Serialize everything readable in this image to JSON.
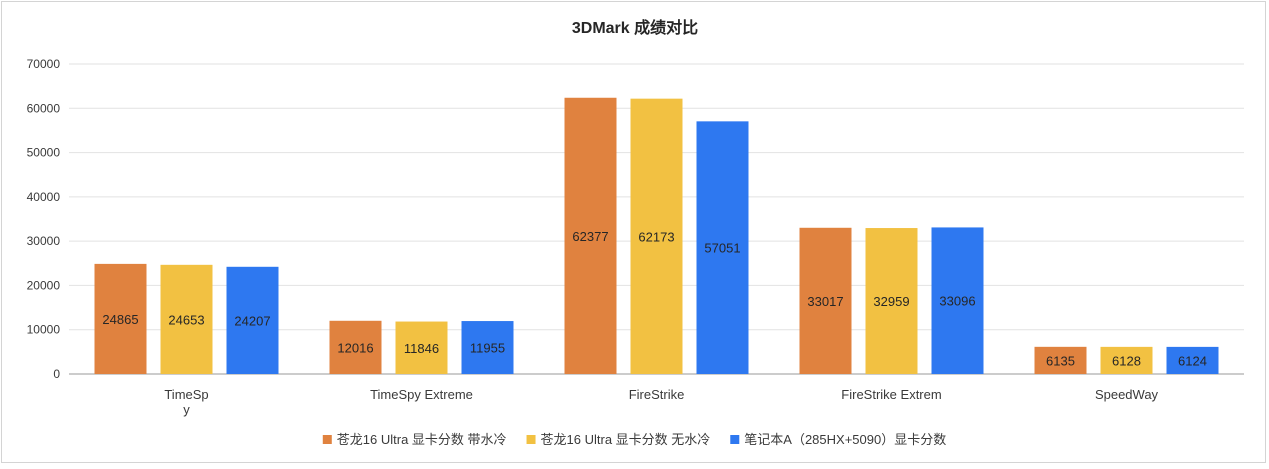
{
  "chart_data": {
    "type": "bar",
    "title": "3DMark 成绩对比",
    "categories": [
      "TimeSpy",
      "TimeSpy Extreme",
      "FireStrike",
      "FireStrike Extrem",
      "SpeedWay"
    ],
    "category_label_lines": [
      [
        "TimeSp",
        "y"
      ],
      [
        "TimeSpy Extreme"
      ],
      [
        "FireStrike"
      ],
      [
        "FireStrike Extrem"
      ],
      [
        "SpeedWay"
      ]
    ],
    "series": [
      {
        "name": "苍龙16 Ultra 显卡分数 带水冷",
        "color": "#e0823f",
        "values": [
          24865,
          12016,
          62377,
          33017,
          6135
        ]
      },
      {
        "name": "苍龙16 Ultra 显卡分数 无水冷",
        "color": "#f2c142",
        "values": [
          24653,
          11846,
          62173,
          32959,
          6128
        ]
      },
      {
        "name": "笔记本A（285HX+5090）显卡分数",
        "color": "#2e78f0",
        "values": [
          24207,
          11955,
          57051,
          33096,
          6124
        ]
      }
    ],
    "ylim": [
      0,
      70000
    ],
    "yticks": [
      0,
      10000,
      20000,
      30000,
      40000,
      50000,
      60000,
      70000
    ],
    "grid": true,
    "legend": "bottom",
    "data_labels": "inside-center"
  }
}
